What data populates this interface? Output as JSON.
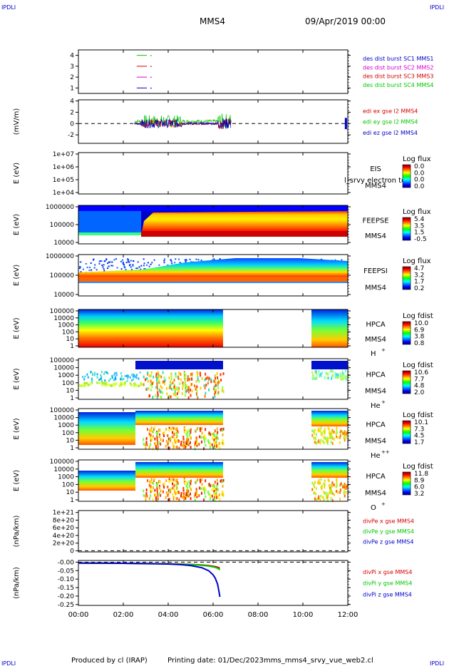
{
  "header": {
    "corner_tl": "IPDLI",
    "corner_tr": "IPDLI",
    "corner_bl": "IPDLI",
    "corner_br": "IPDLI",
    "title": "MMS4",
    "date": "09/Apr/2019 00:00"
  },
  "footer": {
    "produced_by": "Produced by cl (IRAP)",
    "printing_date": "Printing date: 01/Dec/2023",
    "script": "mms_mms4_srvy_vue_web2.cl"
  },
  "colors": {
    "red": "#d40000",
    "green": "#00c800",
    "blue": "#0000cc",
    "magenta": "#d400d4"
  },
  "chart_data": [
    {
      "type": "line",
      "id": "p1",
      "ylabel": "",
      "yticks": [
        "4",
        "3",
        "2",
        "1"
      ],
      "ylim": [
        0.5,
        4.5
      ],
      "legend": [
        {
          "label": "des dist burst SC1 MMS1",
          "color": "#0000cc"
        },
        {
          "label": "des dist burst SC2 MMS2",
          "color": "#d400d4"
        },
        {
          "label": "des dist burst SC3 MMS3",
          "color": "#d40000"
        },
        {
          "label": "des dist burst SC4 MMS4",
          "color": "#00c800"
        }
      ],
      "bursts": [
        {
          "sc": 4,
          "start": 2.6,
          "end": 3.05
        },
        {
          "sc": 3,
          "start": 2.6,
          "end": 3.05
        },
        {
          "sc": 2,
          "start": 2.6,
          "end": 3.05
        },
        {
          "sc": 1,
          "start": 2.6,
          "end": 3.05
        }
      ]
    },
    {
      "type": "line",
      "id": "p2",
      "ylabel": "(mV/m)",
      "yticks": [
        "4",
        "2",
        "0",
        "-2"
      ],
      "ylim": [
        -3.5,
        4.2
      ],
      "legend": [
        {
          "label": "edi ex gse l2 MMS4",
          "color": "#d40000"
        },
        {
          "label": "edi ey gse l2 MMS4",
          "color": "#00c800"
        },
        {
          "label": "edi ez gse l2 MMS4",
          "color": "#0000cc"
        }
      ],
      "zero_line": 0,
      "activity_range": [
        2.5,
        6.8
      ],
      "activity_end_blip": 11.9
    },
    {
      "type": "heatmap",
      "id": "p3",
      "ylabel": "E (eV)",
      "yticks": [
        "1e+07",
        "1e+06",
        "1e+05",
        "1e+04"
      ],
      "instrument": "EIS",
      "sub": "MMS4",
      "species": "",
      "overlay_label": "l_srvy electron to",
      "cbar_title": "Log flux",
      "cbar_ticks": [
        "0.0",
        "0.0",
        "0.0",
        "0.0"
      ]
    },
    {
      "type": "heatmap",
      "id": "p4",
      "ylabel": "E (eV)",
      "yticks": [
        "1000000",
        "100000",
        "10000"
      ],
      "instrument": "FEEPSE",
      "sub": "MMS4",
      "species": "",
      "cbar_title": "Log flux",
      "cbar_ticks": [
        "5.4",
        "3.5",
        "1.5",
        "-0.5"
      ]
    },
    {
      "type": "heatmap",
      "id": "p5",
      "ylabel": "E (eV)",
      "yticks": [
        "1000000",
        "100000",
        "10000"
      ],
      "instrument": "FEEPSI",
      "sub": "MMS4",
      "species": "",
      "cbar_title": "Log flux",
      "cbar_ticks": [
        "4.7",
        "3.2",
        "1.7",
        "0.2"
      ]
    },
    {
      "type": "heatmap",
      "id": "p6",
      "ylabel": "E (eV)",
      "yticks": [
        "100000",
        "10000",
        "1000",
        "100",
        "10",
        "1"
      ],
      "instrument": "HPCA",
      "sub": "MMS4",
      "species": "H",
      "species_sup": "+",
      "cbar_title": "Log fdist",
      "cbar_ticks": [
        "10.0",
        "6.9",
        "3.8",
        "0.8"
      ],
      "data_gaps": [
        [
          6.45,
          10.45
        ]
      ]
    },
    {
      "type": "heatmap",
      "id": "p7",
      "ylabel": "E (eV)",
      "yticks": [
        "100000",
        "10000",
        "1000",
        "100",
        "10",
        "1"
      ],
      "instrument": "HPCA",
      "sub": "MMS4",
      "species": "He",
      "species_sup": "+",
      "cbar_title": "Log fdist",
      "cbar_ticks": [
        "10.6",
        "7.7",
        "4.8",
        "2.0"
      ],
      "data_gaps": [
        [
          6.45,
          10.45
        ]
      ]
    },
    {
      "type": "heatmap",
      "id": "p8",
      "ylabel": "E (eV)",
      "yticks": [
        "100000",
        "10000",
        "1000",
        "100",
        "10",
        "1"
      ],
      "instrument": "HPCA",
      "sub": "MMS4",
      "species": "He",
      "species_sup": "++",
      "cbar_title": "Log fdist",
      "cbar_ticks": [
        "10.1",
        "7.3",
        "4.5",
        "1.7"
      ],
      "data_gaps": [
        [
          6.45,
          10.45
        ]
      ]
    },
    {
      "type": "heatmap",
      "id": "p9",
      "ylabel": "E (eV)",
      "yticks": [
        "100000",
        "10000",
        "1000",
        "100",
        "10",
        "1"
      ],
      "instrument": "HPCA",
      "sub": "MMS4",
      "species": "O",
      "species_sup": "+",
      "cbar_title": "Log fdist",
      "cbar_ticks": [
        "11.8",
        "8.9",
        "6.0",
        "3.2"
      ],
      "data_gaps": [
        [
          6.45,
          10.45
        ]
      ]
    },
    {
      "type": "line",
      "id": "p10",
      "ylabel": "(nPa/km)",
      "yticks": [
        "1e+21",
        "8e+20",
        "6e+20",
        "4e+20",
        "2e+20",
        "0"
      ],
      "ylim": [
        -3e+19,
        1.05e+21
      ],
      "legend": [
        {
          "label": "divPe x gse MMS4",
          "color": "#d40000"
        },
        {
          "label": "divPe y gse MMS4",
          "color": "#00c800"
        },
        {
          "label": "divPe z gse MMS4",
          "color": "#0000cc"
        }
      ],
      "zero_line": 0
    },
    {
      "type": "line",
      "id": "p11",
      "ylabel": "(nPa/km)",
      "yticks": [
        "-0.00",
        "-0.05",
        "-0.10",
        "-0.15",
        "-0.20",
        "-0.25"
      ],
      "ylim": [
        -0.255,
        0.01
      ],
      "legend": [
        {
          "label": "divPi x gse MMS4",
          "color": "#d40000"
        },
        {
          "label": "divPi y gse MMS4",
          "color": "#00c800"
        },
        {
          "label": "divPi z gse MMS4",
          "color": "#0000cc"
        }
      ],
      "zero_line": 0,
      "x": [
        0,
        1,
        2,
        3,
        4,
        4.5,
        5,
        5.5,
        5.8,
        6.0,
        6.1,
        6.2,
        6.25,
        6.3
      ],
      "series": [
        {
          "name": "divPi x gse MMS4",
          "color": "#d40000",
          "values": [
            -0.005,
            -0.006,
            -0.007,
            -0.008,
            -0.01,
            -0.011,
            -0.013,
            -0.017,
            -0.02,
            -0.024,
            -0.026,
            -0.03,
            -0.033,
            -0.036
          ]
        },
        {
          "name": "divPi y gse MMS4",
          "color": "#00c800",
          "values": [
            -0.005,
            -0.006,
            -0.007,
            -0.008,
            -0.01,
            -0.012,
            -0.014,
            -0.019,
            -0.023,
            -0.028,
            -0.031,
            -0.036,
            -0.04,
            -0.045
          ]
        },
        {
          "name": "divPi z gse MMS4",
          "color": "#0000cc",
          "values": [
            -0.005,
            -0.006,
            -0.007,
            -0.009,
            -0.011,
            -0.014,
            -0.02,
            -0.033,
            -0.05,
            -0.075,
            -0.095,
            -0.13,
            -0.165,
            -0.205
          ]
        }
      ]
    }
  ],
  "xaxis": {
    "xlim": [
      0,
      12
    ],
    "ticks": [
      {
        "v": 0,
        "label": "00:00"
      },
      {
        "v": 2,
        "label": "02:00"
      },
      {
        "v": 4,
        "label": "04:00"
      },
      {
        "v": 6,
        "label": "06:00"
      },
      {
        "v": 8,
        "label": "08:00"
      },
      {
        "v": 10,
        "label": "10:00"
      },
      {
        "v": 12,
        "label": "12:00"
      }
    ]
  }
}
